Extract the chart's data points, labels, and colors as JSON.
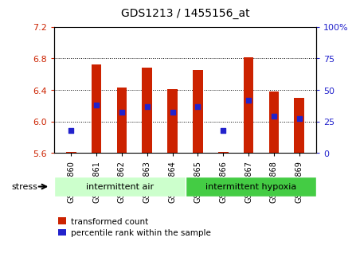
{
  "title": "GDS1213 / 1455156_at",
  "samples": [
    "GSM32860",
    "GSM32861",
    "GSM32862",
    "GSM32863",
    "GSM32864",
    "GSM32865",
    "GSM32866",
    "GSM32867",
    "GSM32868",
    "GSM32869"
  ],
  "transformed_count": [
    5.61,
    6.72,
    6.43,
    6.68,
    6.41,
    6.65,
    5.61,
    6.81,
    6.38,
    6.3
  ],
  "percentile_rank": [
    18,
    38,
    32,
    37,
    32,
    37,
    18,
    42,
    29,
    27
  ],
  "ylim_left": [
    5.6,
    7.2
  ],
  "ylim_right": [
    0,
    100
  ],
  "yticks_left": [
    5.6,
    6.0,
    6.4,
    6.8,
    7.2
  ],
  "yticks_right": [
    0,
    25,
    50,
    75,
    100
  ],
  "bar_color": "#CC2200",
  "dot_color": "#2222CC",
  "group1_label": "intermittent air",
  "group2_label": "intermittent hypoxia",
  "group1_color": "#CCFFCC",
  "group2_color": "#44CC44",
  "stress_label": "stress",
  "legend_bar": "transformed count",
  "legend_dot": "percentile rank within the sample",
  "bar_width": 0.4,
  "base_value": 5.6,
  "tick_label_size": 7.0,
  "axis_color_left": "#CC2200",
  "axis_color_right": "#2222CC",
  "group1_samples": 5,
  "group2_samples": 5
}
